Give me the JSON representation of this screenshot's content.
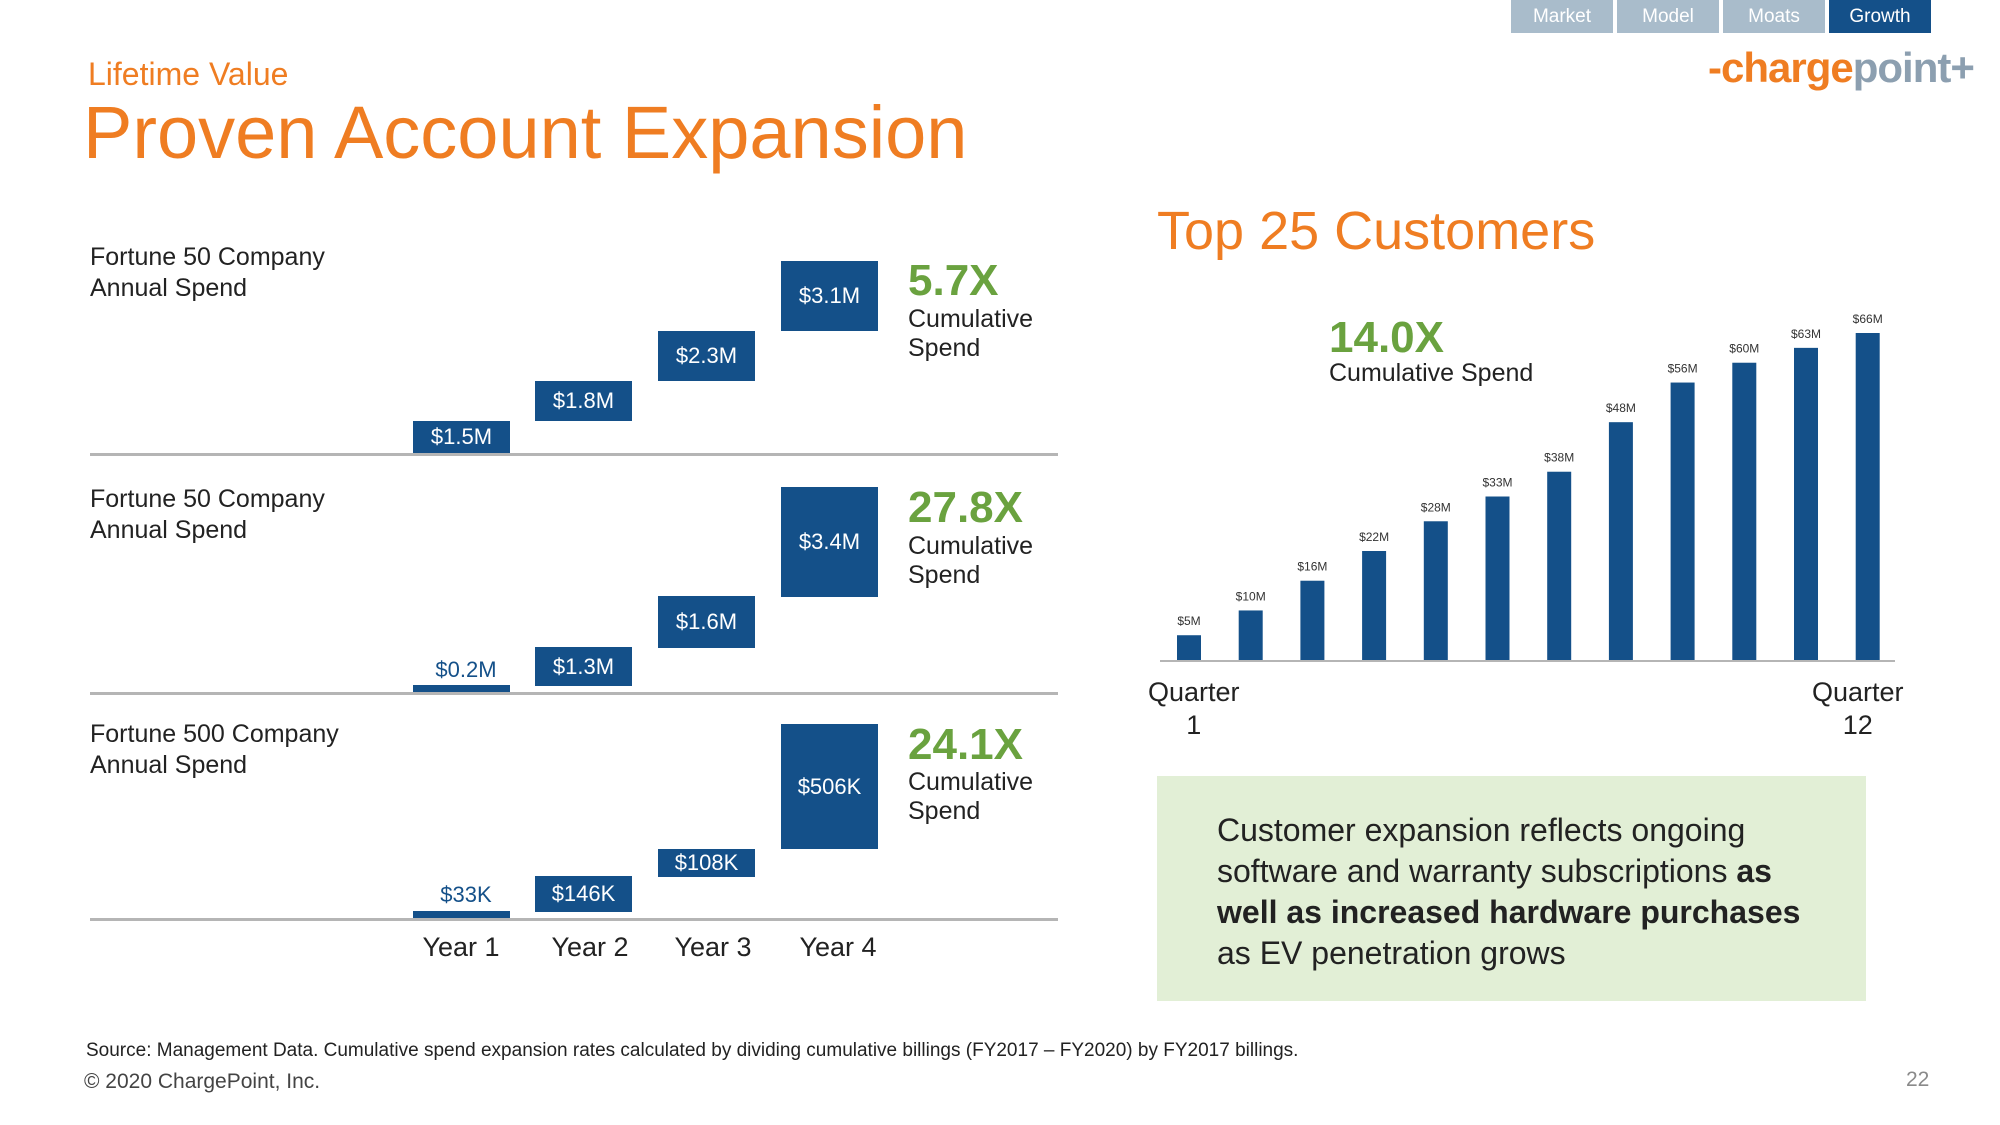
{
  "nav": {
    "tabs": [
      "Market",
      "Model",
      "Moats",
      "Growth"
    ],
    "active": "Growth"
  },
  "logo": {
    "prefix": "-charge",
    "suffix": "point+"
  },
  "header": {
    "eyebrow": "Lifetime Value",
    "title": "Proven Account Expansion"
  },
  "left_chart": {
    "year_labels": [
      "Year 1",
      "Year 2",
      "Year 3",
      "Year 4"
    ],
    "panels": [
      {
        "label_line1": "Fortune 50 Company",
        "label_line2": "Annual Spend",
        "multiple": "5.7X",
        "multiple_sub1": "Cumulative",
        "multiple_sub2": "Spend",
        "bars": [
          {
            "year": "Year 1",
            "value": "$1.5M"
          },
          {
            "year": "Year 2",
            "value": "$1.8M"
          },
          {
            "year": "Year 3",
            "value": "$2.3M"
          },
          {
            "year": "Year 4",
            "value": "$3.1M"
          }
        ]
      },
      {
        "label_line1": "Fortune 50 Company",
        "label_line2": "Annual Spend",
        "multiple": "27.8X",
        "multiple_sub1": "Cumulative",
        "multiple_sub2": "Spend",
        "bars": [
          {
            "year": "Year 1",
            "value": "$0.2M"
          },
          {
            "year": "Year 2",
            "value": "$1.3M"
          },
          {
            "year": "Year 3",
            "value": "$1.6M"
          },
          {
            "year": "Year 4",
            "value": "$3.4M"
          }
        ]
      },
      {
        "label_line1": "Fortune 500 Company",
        "label_line2": "Annual Spend",
        "multiple": "24.1X",
        "multiple_sub1": "Cumulative",
        "multiple_sub2": "Spend",
        "bars": [
          {
            "year": "Year 1",
            "value": "$33K"
          },
          {
            "year": "Year 2",
            "value": "$146K"
          },
          {
            "year": "Year 3",
            "value": "$108K"
          },
          {
            "year": "Year 4",
            "value": "$506K"
          }
        ]
      }
    ]
  },
  "right_section": {
    "title": "Top 25 Customers",
    "multiple": "14.0X",
    "multiple_sub": "Cumulative Spend",
    "x_start_label_line1": "Quarter",
    "x_start_label_line2": "1",
    "x_end_label_line1": "Quarter",
    "x_end_label_line2": "12"
  },
  "chart_data": [
    {
      "type": "bar",
      "title": "Fortune 50 Company Annual Spend",
      "categories": [
        "Year 1",
        "Year 2",
        "Year 3",
        "Year 4"
      ],
      "values": [
        1.5,
        1.8,
        2.3,
        3.1
      ],
      "unit": "$M",
      "annotation": "5.7X Cumulative Spend"
    },
    {
      "type": "bar",
      "title": "Fortune 50 Company Annual Spend",
      "categories": [
        "Year 1",
        "Year 2",
        "Year 3",
        "Year 4"
      ],
      "values": [
        0.2,
        1.3,
        1.6,
        3.4
      ],
      "unit": "$M",
      "annotation": "27.8X Cumulative Spend"
    },
    {
      "type": "bar",
      "title": "Fortune 500 Company Annual Spend",
      "categories": [
        "Year 1",
        "Year 2",
        "Year 3",
        "Year 4"
      ],
      "values": [
        33,
        146,
        108,
        506
      ],
      "unit": "$K",
      "annotation": "24.1X Cumulative Spend"
    },
    {
      "type": "bar",
      "title": "Top 25 Customers",
      "categories": [
        "Q1",
        "Q2",
        "Q3",
        "Q4",
        "Q5",
        "Q6",
        "Q7",
        "Q8",
        "Q9",
        "Q10",
        "Q11",
        "Q12"
      ],
      "values": [
        5,
        10,
        16,
        22,
        28,
        33,
        38,
        48,
        56,
        60,
        63,
        66
      ],
      "data_labels": [
        "$5M",
        "$10M",
        "$16M",
        "$22M",
        "$28M",
        "$33M",
        "$38M",
        "$48M",
        "$56M",
        "$60M",
        "$63M",
        "$66M"
      ],
      "unit": "$M",
      "xlabel_start": "Quarter 1",
      "xlabel_end": "Quarter 12",
      "ylim": [
        0,
        66
      ],
      "annotation": "14.0X Cumulative Spend"
    }
  ],
  "callout": {
    "p1": "Customer expansion reflects ongoing software and warranty subscriptions ",
    "b1": "as well as increased hardware purchases",
    "p2": " as EV penetration grows"
  },
  "footer": {
    "source": "Source: Management Data. Cumulative spend expansion rates calculated by dividing cumulative billings (FY2017 – FY2020) by FY2017 billings.",
    "copyright": "© 2020 ChargePoint, Inc.",
    "page_number": "22"
  },
  "colors": {
    "orange": "#ef7d22",
    "navy": "#145089",
    "green": "#6aa23f",
    "tab": "#a9bccb",
    "callout_bg": "#e2efd6"
  }
}
